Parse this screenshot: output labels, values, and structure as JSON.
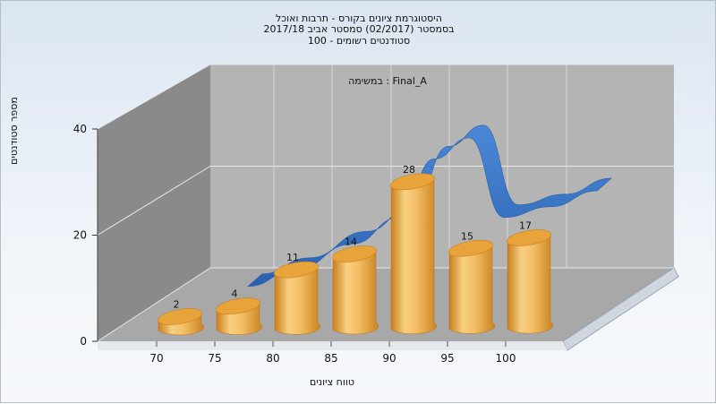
{
  "window": {
    "title_lines": [
      "היסטוגרמת ציונים בקורס - תרבות ואוכל",
      "בסמסטר (02/2017) סמסטר אביב 2017/18",
      "100 - סטודנטים רשומים"
    ]
  },
  "colors": {
    "bar": "#e8a43a",
    "curve": "#3373c4",
    "back_wall": "#b4b4b4",
    "side_wall": "#8a8a8a",
    "floor": "#a8a8a8"
  },
  "chart_data": {
    "type": "bar",
    "title": "היסטוגרמת ציונים בקורס - תרבות ואוכל",
    "subtitle": [
      "בסמסטר (02/2017) סמסטר אביב 2017/18",
      "100 - סטודנטים רשומים"
    ],
    "annotation": "במשימה : Final_A",
    "xlabel": "טווח ציונים",
    "ylabel": "מספר סטודנטים",
    "categories": [
      "70",
      "75",
      "80",
      "85",
      "90",
      "95",
      "100"
    ],
    "ylim": [
      0,
      40
    ],
    "yticks": [
      0,
      20,
      40
    ],
    "grid": true,
    "series": [
      {
        "type": "bar",
        "values": [
          2,
          4,
          11,
          14,
          28,
          15,
          17
        ]
      },
      {
        "type": "line",
        "x": [
          76,
          80,
          85,
          89,
          92,
          95,
          98,
          102,
          106
        ],
        "values": [
          9,
          12,
          17,
          22,
          33,
          37,
          22,
          24,
          27
        ]
      }
    ]
  }
}
